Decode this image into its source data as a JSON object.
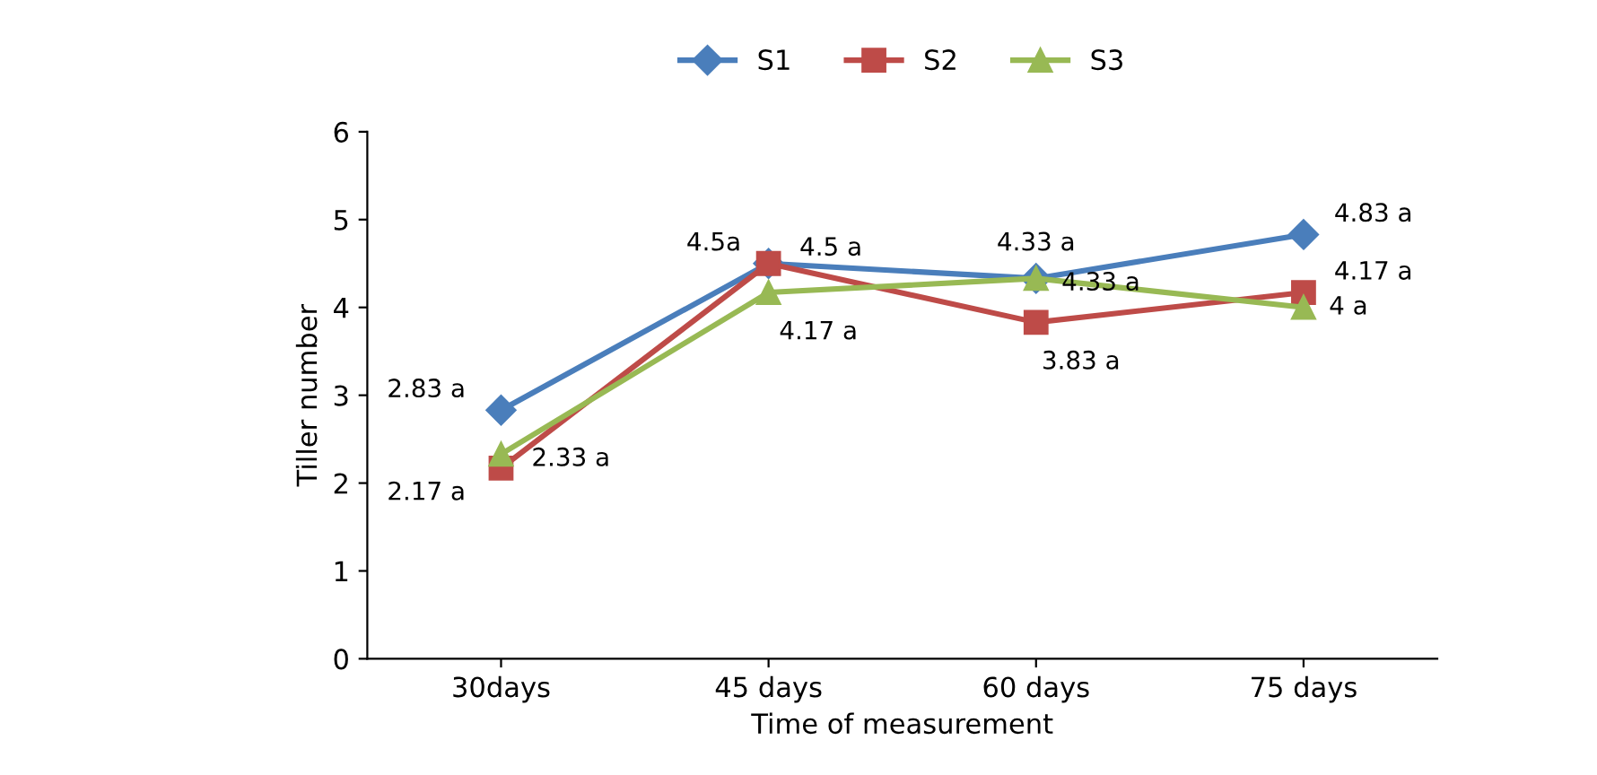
{
  "chart_data": {
    "type": "line",
    "xlabel": "Time of measurement",
    "ylabel": "Tiller number",
    "categories": [
      "30days",
      "45 days",
      "60 days",
      "75 days"
    ],
    "series": [
      {
        "name": "S1",
        "color": "#4a7ebb",
        "marker": "diamond",
        "values": [
          2.83,
          4.5,
          4.33,
          4.83
        ],
        "value_labels": [
          "2.83 a",
          "4.5 a",
          "4.33 a",
          "4.83 a"
        ]
      },
      {
        "name": "S2",
        "color": "#be4b48",
        "marker": "square",
        "values": [
          2.17,
          4.5,
          3.83,
          4.17
        ],
        "value_labels": [
          "2.17 a",
          "4.5a",
          "3.83 a",
          "4.17 a"
        ]
      },
      {
        "name": "S3",
        "color": "#98b954",
        "marker": "triangle",
        "values": [
          2.33,
          4.17,
          4.33,
          4
        ],
        "value_labels": [
          "2.33 a",
          "4.17 a",
          "4.33 a",
          "4 a"
        ]
      }
    ],
    "ylim": [
      0,
      6
    ],
    "yticks": [
      0,
      1,
      2,
      3,
      4,
      5,
      6
    ],
    "grid": false,
    "legend": "top",
    "line_style": "solid"
  }
}
